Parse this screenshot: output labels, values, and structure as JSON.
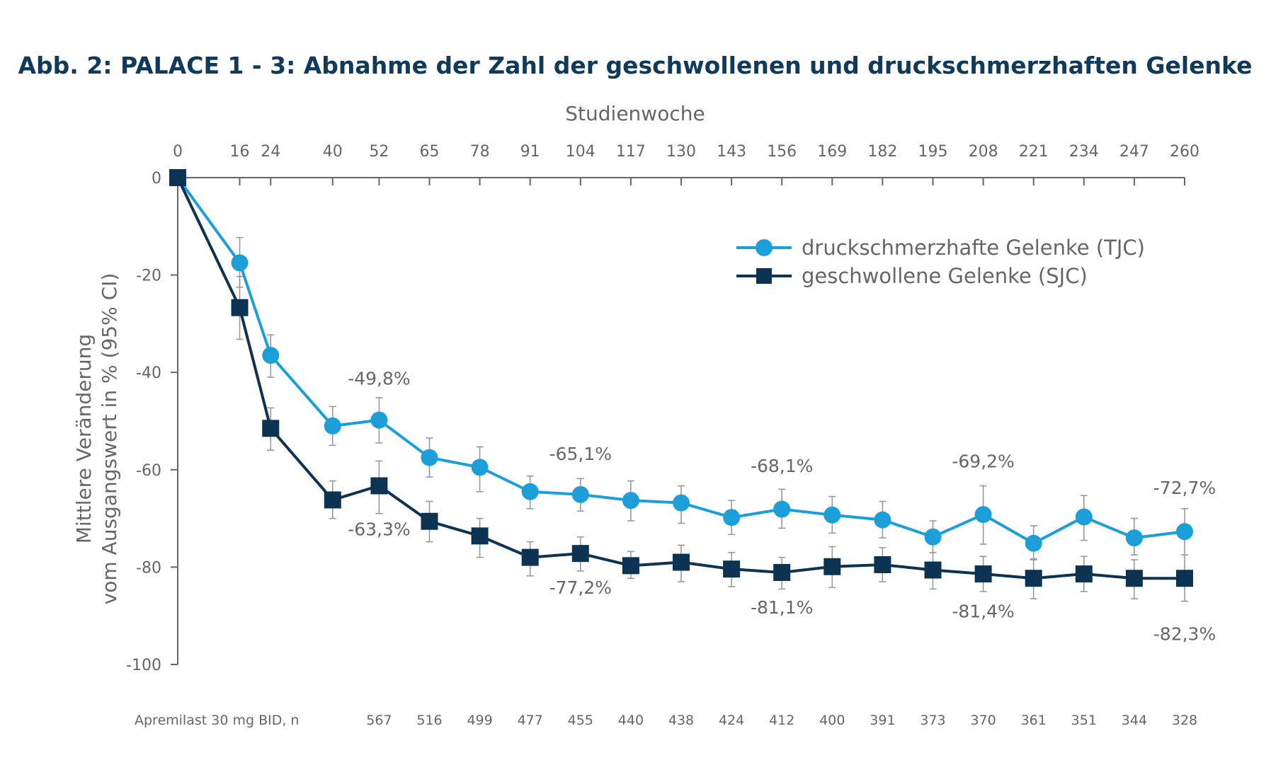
{
  "colors": {
    "tjc": "#1c9fd9",
    "sjc": "#0d3352",
    "axis": "#666666",
    "error": "#999999",
    "title": "#0f3a5c"
  },
  "chart_data": {
    "type": "line",
    "title": "Abb. 2: PALACE 1 - 3: Abnahme der Zahl der geschwollenen und druckschmerzhaften Gelenke",
    "xlabel": "Studienwoche",
    "ylabel_line1": "Mittlere Veränderung",
    "ylabel_line2": "vom Ausgangswert in % (95% CI)",
    "x_ticks": [
      0,
      16,
      24,
      40,
      52,
      65,
      78,
      91,
      104,
      117,
      130,
      143,
      156,
      169,
      182,
      195,
      208,
      221,
      234,
      247,
      260
    ],
    "y_ticks": [
      0,
      -20,
      -40,
      -60,
      -80,
      -100
    ],
    "xlim": [
      0,
      260
    ],
    "ylim": [
      -100,
      0
    ],
    "series": [
      {
        "name": "druckschmerzhafte Gelenke (TJC)",
        "marker": "circle",
        "x": [
          0,
          16,
          24,
          40,
          52,
          65,
          78,
          91,
          104,
          117,
          130,
          143,
          156,
          169,
          182,
          195,
          208,
          221,
          234,
          247,
          260
        ],
        "y": [
          0,
          -17.5,
          -36.5,
          -51,
          -49.8,
          -57.5,
          -59.5,
          -64.5,
          -65.1,
          -66.3,
          -66.8,
          -69.8,
          -68.1,
          -69.3,
          -70.3,
          -73.8,
          -69.2,
          -75.1,
          -69.7,
          -74,
          -72.7
        ],
        "err_low": [
          0,
          -22.5,
          -41,
          -55,
          -54.5,
          -61.5,
          -64.5,
          -68,
          -68.5,
          -70.5,
          -71,
          -73.3,
          -72,
          -73,
          -74,
          -77,
          -75.3,
          -78.5,
          -74.5,
          -77.5,
          -77.5
        ],
        "err_high": [
          0,
          -12.3,
          -32.3,
          -47,
          -45.2,
          -53.5,
          -55.3,
          -61.3,
          -61.8,
          -62.3,
          -63.3,
          -66.3,
          -64,
          -65.5,
          -66.5,
          -70.5,
          -63.3,
          -71.5,
          -65.3,
          -70,
          -68
        ]
      },
      {
        "name": "geschwollene Gelenke (SJC)",
        "marker": "square",
        "x": [
          0,
          16,
          24,
          40,
          52,
          65,
          78,
          91,
          104,
          117,
          130,
          143,
          156,
          169,
          182,
          195,
          208,
          221,
          234,
          247,
          260
        ],
        "y": [
          0,
          -26.7,
          -51.5,
          -66.2,
          -63.3,
          -70.6,
          -73.6,
          -78,
          -77.2,
          -79.7,
          -79,
          -80.4,
          -81.1,
          -79.9,
          -79.5,
          -80.6,
          -81.4,
          -82.3,
          -81.4,
          -82.3,
          -82.3
        ],
        "err_low": [
          0,
          -33.2,
          -56,
          -70,
          -69,
          -74.8,
          -78,
          -81.8,
          -80.8,
          -82.3,
          -83,
          -84,
          -84.5,
          -84.2,
          -83,
          -84.5,
          -85,
          -86.5,
          -85,
          -86.5,
          -87
        ],
        "err_high": [
          0,
          -20.3,
          -47.3,
          -62.3,
          -58.2,
          -66.5,
          -70,
          -74.8,
          -73.8,
          -76.8,
          -75.5,
          -77,
          -78,
          -75.8,
          -76,
          -77,
          -77.8,
          -78.3,
          -77.8,
          -78.5,
          -77.5
        ]
      }
    ],
    "annotations": [
      {
        "text": "-49,8%",
        "x": 52,
        "y": -42.5
      },
      {
        "text": "-63,3%",
        "x": 52,
        "y": -73.5
      },
      {
        "text": "-65,1%",
        "x": 104,
        "y": -58
      },
      {
        "text": "-77,2%",
        "x": 104,
        "y": -85.5
      },
      {
        "text": "-68,1%",
        "x": 156,
        "y": -60.5
      },
      {
        "text": "-81,1%",
        "x": 156,
        "y": -89.5
      },
      {
        "text": "-69,2%",
        "x": 208,
        "y": -59.5
      },
      {
        "text": "-81,4%",
        "x": 208,
        "y": -90.3
      },
      {
        "text": "-72,7%",
        "x": 260,
        "y": -65
      },
      {
        "text": "-82,3%",
        "x": 260,
        "y": -95
      }
    ],
    "n_row": {
      "label": "Apremilast 30 mg BID, n",
      "values": [
        {
          "x": 52,
          "n": "567"
        },
        {
          "x": 65,
          "n": "516"
        },
        {
          "x": 78,
          "n": "499"
        },
        {
          "x": 91,
          "n": "477"
        },
        {
          "x": 104,
          "n": "455"
        },
        {
          "x": 117,
          "n": "440"
        },
        {
          "x": 130,
          "n": "438"
        },
        {
          "x": 143,
          "n": "424"
        },
        {
          "x": 156,
          "n": "412"
        },
        {
          "x": 169,
          "n": "400"
        },
        {
          "x": 182,
          "n": "391"
        },
        {
          "x": 195,
          "n": "373"
        },
        {
          "x": 208,
          "n": "370"
        },
        {
          "x": 221,
          "n": "361"
        },
        {
          "x": 234,
          "n": "351"
        },
        {
          "x": 247,
          "n": "344"
        },
        {
          "x": 260,
          "n": "328"
        }
      ]
    },
    "legend_position": "top-right"
  }
}
